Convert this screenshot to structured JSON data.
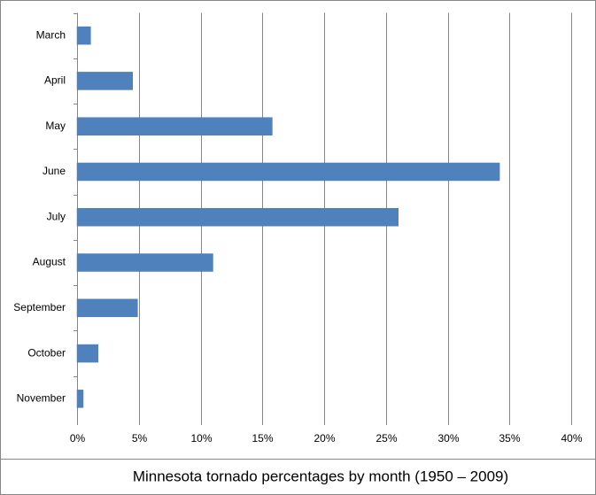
{
  "chart_data": {
    "type": "hbar",
    "title": "Minnesota tornado percentages by month (1950 – 2009)",
    "categories": [
      "March",
      "April",
      "May",
      "June",
      "July",
      "August",
      "September",
      "October",
      "November"
    ],
    "values": [
      1.1,
      4.5,
      15.8,
      34.2,
      26.0,
      11.0,
      4.9,
      1.7,
      0.5
    ],
    "color": "#4f81bd",
    "xlim": [
      0,
      40
    ],
    "xticks": [
      {
        "value": 0,
        "label": "0%"
      },
      {
        "value": 5,
        "label": "5%"
      },
      {
        "value": 10,
        "label": "10%"
      },
      {
        "value": 15,
        "label": "15%"
      },
      {
        "value": 20,
        "label": "20%"
      },
      {
        "value": 25,
        "label": "25%"
      },
      {
        "value": 30,
        "label": "30%"
      },
      {
        "value": 35,
        "label": "35%"
      },
      {
        "value": 40,
        "label": "40%"
      }
    ],
    "grid": true
  }
}
